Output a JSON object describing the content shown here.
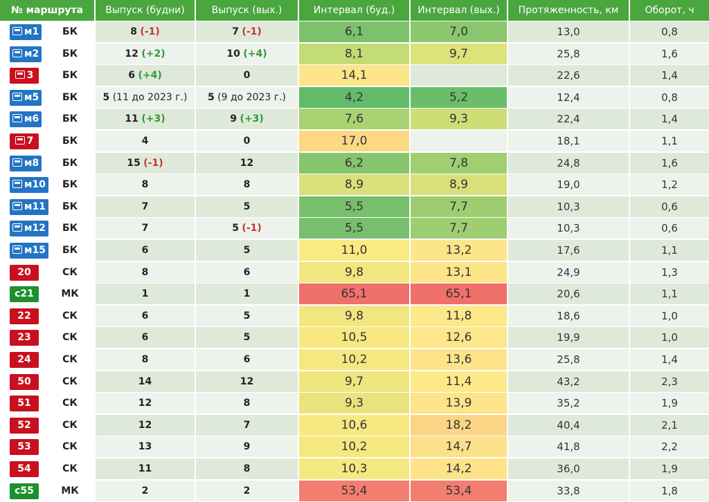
{
  "headers": [
    "№ маршрута",
    "Выпуск (будни)",
    "Выпуск (вых.)",
    "Интервал (буд.)",
    "Интервал (вых.)",
    "Протяженность, км",
    "Оборот, ч"
  ],
  "colors": {
    "header_green": "#4aa63f",
    "badge_blue": "#2474c4",
    "badge_red": "#c8101e",
    "badge_green": "#1f8f2e",
    "delta_neg": "#c0392b",
    "delta_pos": "#2e9b3a"
  },
  "rows": [
    {
      "route": "м1",
      "badge": "blue",
      "icon": true,
      "type": "БК",
      "wd_main": "8",
      "wd_delta": "(-1)",
      "wd_delta_sign": "neg",
      "we_main": "7",
      "we_delta": "(-1)",
      "we_delta_sign": "neg",
      "iw": "6,1",
      "iw_color": "#7dc06d",
      "ie": "7,0",
      "ie_color": "#8cc66f",
      "len": "13,0",
      "turn": "0,8"
    },
    {
      "route": "м2",
      "badge": "blue",
      "icon": true,
      "type": "БК",
      "wd_main": "12",
      "wd_delta": "(+2)",
      "wd_delta_sign": "pos",
      "we_main": "10",
      "we_delta": "(+4)",
      "we_delta_sign": "pos",
      "iw": "8,1",
      "iw_color": "#c4dc76",
      "ie": "9,7",
      "ie_color": "#dde27a",
      "len": "25,8",
      "turn": "1,6"
    },
    {
      "route": "3",
      "badge": "red",
      "icon": true,
      "type": "БК",
      "wd_main": "6",
      "wd_delta": "(+4)",
      "wd_delta_sign": "pos",
      "we_main": "0",
      "we_delta": "",
      "we_delta_sign": "",
      "iw": "14,1",
      "iw_color": "#fde68a",
      "ie": "",
      "ie_color": "",
      "len": "22,6",
      "turn": "1,4"
    },
    {
      "route": "м5",
      "badge": "blue",
      "icon": true,
      "type": "БК",
      "wd_main": "5",
      "wd_delta": " (11 до 2023 г.)",
      "wd_delta_sign": "plain",
      "we_main": "5",
      "we_delta": " (9 до 2023 г.)",
      "we_delta_sign": "plain",
      "iw": "4,2",
      "iw_color": "#63bb6a",
      "ie": "5,2",
      "ie_color": "#6cbd6a",
      "len": "12,4",
      "turn": "0,8"
    },
    {
      "route": "м6",
      "badge": "blue",
      "icon": true,
      "type": "БК",
      "wd_main": "11",
      "wd_delta": "(+3)",
      "wd_delta_sign": "pos",
      "we_main": "9",
      "we_delta": "(+3)",
      "we_delta_sign": "pos",
      "iw": "7,6",
      "iw_color": "#a9d273",
      "ie": "9,3",
      "ie_color": "#cfdd77",
      "len": "22,4",
      "turn": "1,4"
    },
    {
      "route": "7",
      "badge": "red",
      "icon": true,
      "type": "БК",
      "wd_main": "4",
      "wd_delta": "",
      "wd_delta_sign": "",
      "we_main": "0",
      "we_delta": "",
      "we_delta_sign": "",
      "iw": "17,0",
      "iw_color": "#fcd883",
      "ie": "",
      "ie_color": "",
      "len": "18,1",
      "turn": "1,1"
    },
    {
      "route": "м8",
      "badge": "blue",
      "icon": true,
      "type": "БК",
      "wd_main": "15",
      "wd_delta": "(-1)",
      "wd_delta_sign": "neg",
      "we_main": "12",
      "we_delta": "",
      "we_delta_sign": "",
      "iw": "6,2",
      "iw_color": "#86c46e",
      "ie": "7,8",
      "ie_color": "#9fcf71",
      "len": "24,8",
      "turn": "1,6"
    },
    {
      "route": "м10",
      "badge": "blue",
      "icon": true,
      "type": "БК",
      "wd_main": "8",
      "wd_delta": "",
      "wd_delta_sign": "",
      "we_main": "8",
      "we_delta": "",
      "we_delta_sign": "",
      "iw": "8,9",
      "iw_color": "#d9e07a",
      "ie": "8,9",
      "ie_color": "#d9e07a",
      "len": "19,0",
      "turn": "1,2"
    },
    {
      "route": "м11",
      "badge": "blue",
      "icon": true,
      "type": "БК",
      "wd_main": "7",
      "wd_delta": "",
      "wd_delta_sign": "",
      "we_main": "5",
      "we_delta": "",
      "we_delta_sign": "",
      "iw": "5,5",
      "iw_color": "#78bf6d",
      "ie": "7,7",
      "ie_color": "#9ece71",
      "len": "10,3",
      "turn": "0,6"
    },
    {
      "route": "м12",
      "badge": "blue",
      "icon": true,
      "type": "БК",
      "wd_main": "7",
      "wd_delta": "",
      "wd_delta_sign": "",
      "we_main": "5",
      "we_delta": "(-1)",
      "we_delta_sign": "neg",
      "iw": "5,5",
      "iw_color": "#78bf6d",
      "ie": "7,7",
      "ie_color": "#9ece71",
      "len": "10,3",
      "turn": "0,6"
    },
    {
      "route": "м15",
      "badge": "blue",
      "icon": true,
      "type": "БК",
      "wd_main": "6",
      "wd_delta": "",
      "wd_delta_sign": "",
      "we_main": "5",
      "we_delta": "",
      "we_delta_sign": "",
      "iw": "11,0",
      "iw_color": "#fbe982",
      "ie": "13,2",
      "ie_color": "#fde58a",
      "len": "17,6",
      "turn": "1,1"
    },
    {
      "route": "20",
      "badge": "red",
      "icon": false,
      "type": "СК",
      "wd_main": "8",
      "wd_delta": "",
      "wd_delta_sign": "",
      "we_main": "6",
      "we_delta": "",
      "we_delta_sign": "",
      "iw": "9,8",
      "iw_color": "#f2e680",
      "ie": "13,1",
      "ie_color": "#fde58a",
      "len": "24,9",
      "turn": "1,3"
    },
    {
      "route": "с21",
      "badge": "green",
      "icon": false,
      "type": "МК",
      "wd_main": "1",
      "wd_delta": "",
      "wd_delta_sign": "",
      "we_main": "1",
      "we_delta": "",
      "we_delta_sign": "",
      "iw": "65,1",
      "iw_color": "#f0706b",
      "ie": "65,1",
      "ie_color": "#f0706b",
      "len": "20,6",
      "turn": "1,1"
    },
    {
      "route": "22",
      "badge": "red",
      "icon": false,
      "type": "СК",
      "wd_main": "6",
      "wd_delta": "",
      "wd_delta_sign": "",
      "we_main": "5",
      "we_delta": "",
      "we_delta_sign": "",
      "iw": "9,8",
      "iw_color": "#f2e680",
      "ie": "11,8",
      "ie_color": "#fde88a",
      "len": "18,6",
      "turn": "1,0"
    },
    {
      "route": "23",
      "badge": "red",
      "icon": false,
      "type": "СК",
      "wd_main": "6",
      "wd_delta": "",
      "wd_delta_sign": "",
      "we_main": "5",
      "we_delta": "",
      "we_delta_sign": "",
      "iw": "10,5",
      "iw_color": "#f8e882",
      "ie": "12,6",
      "ie_color": "#fde78a",
      "len": "19,9",
      "turn": "1,0"
    },
    {
      "route": "24",
      "badge": "red",
      "icon": false,
      "type": "СК",
      "wd_main": "8",
      "wd_delta": "",
      "wd_delta_sign": "",
      "we_main": "6",
      "we_delta": "",
      "we_delta_sign": "",
      "iw": "10,2",
      "iw_color": "#f6e881",
      "ie": "13,6",
      "ie_color": "#fde48a",
      "len": "25,8",
      "turn": "1,4"
    },
    {
      "route": "50",
      "badge": "red",
      "icon": false,
      "type": "СК",
      "wd_main": "14",
      "wd_delta": "",
      "wd_delta_sign": "",
      "we_main": "12",
      "we_delta": "",
      "we_delta_sign": "",
      "iw": "9,7",
      "iw_color": "#f0e680",
      "ie": "11,4",
      "ie_color": "#fde98a",
      "len": "43,2",
      "turn": "2,3"
    },
    {
      "route": "51",
      "badge": "red",
      "icon": false,
      "type": "СК",
      "wd_main": "12",
      "wd_delta": "",
      "wd_delta_sign": "",
      "we_main": "8",
      "we_delta": "",
      "we_delta_sign": "",
      "iw": "9,3",
      "iw_color": "#e9e37e",
      "ie": "13,9",
      "ie_color": "#fde38a",
      "len": "35,2",
      "turn": "1,9"
    },
    {
      "route": "52",
      "badge": "red",
      "icon": false,
      "type": "СК",
      "wd_main": "12",
      "wd_delta": "",
      "wd_delta_sign": "",
      "we_main": "7",
      "we_delta": "",
      "we_delta_sign": "",
      "iw": "10,6",
      "iw_color": "#f8e882",
      "ie": "18,2",
      "ie_color": "#fbd486",
      "len": "40,4",
      "turn": "2,1"
    },
    {
      "route": "53",
      "badge": "red",
      "icon": false,
      "type": "СК",
      "wd_main": "13",
      "wd_delta": "",
      "wd_delta_sign": "",
      "we_main": "9",
      "we_delta": "",
      "we_delta_sign": "",
      "iw": "10,2",
      "iw_color": "#f6e881",
      "ie": "14,7",
      "ie_color": "#fde08a",
      "len": "41,8",
      "turn": "2,2"
    },
    {
      "route": "54",
      "badge": "red",
      "icon": false,
      "type": "СК",
      "wd_main": "11",
      "wd_delta": "",
      "wd_delta_sign": "",
      "we_main": "8",
      "we_delta": "",
      "we_delta_sign": "",
      "iw": "10,3",
      "iw_color": "#f6e881",
      "ie": "14,2",
      "ie_color": "#fde28a",
      "len": "36,0",
      "turn": "1,9"
    },
    {
      "route": "с55",
      "badge": "green",
      "icon": false,
      "type": "МК",
      "wd_main": "2",
      "wd_delta": "",
      "wd_delta_sign": "",
      "we_main": "2",
      "we_delta": "",
      "we_delta_sign": "",
      "iw": "53,4",
      "iw_color": "#f27e70",
      "ie": "53,4",
      "ie_color": "#f27e70",
      "len": "33,8",
      "turn": "1,8"
    }
  ]
}
